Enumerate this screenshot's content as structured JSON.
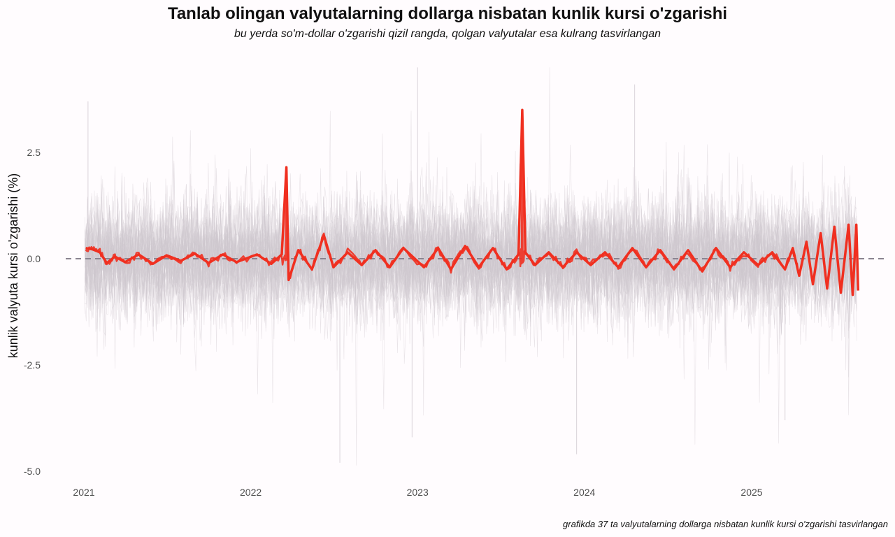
{
  "title": "Tanlab olingan valyutalarning dollarga nisbatan kunlik kursi o'zgarishi",
  "subtitle": "bu yerda so'm-dollar o'zgarishi qizil rangda,  qolgan valyutalar esa kulrang tasvirlangan",
  "caption": "grafikda  37 ta valyutalarning dollarga  nisbatan kunlik kursi o'zgarishi tasvirlangan",
  "chart_data": {
    "type": "line",
    "ylabel": "kunlik valyuta kursi o'zgarishi (%)",
    "xlabel": "",
    "xlim": [
      "2021-01-01",
      "2025-09-01"
    ],
    "ylim": [
      -5.0,
      4.5
    ],
    "x_ticks": [
      {
        "value": "2021-01-01",
        "label": "2021"
      },
      {
        "value": "2022-01-01",
        "label": "2022"
      },
      {
        "value": "2023-01-01",
        "label": "2023"
      },
      {
        "value": "2024-01-01",
        "label": "2024"
      },
      {
        "value": "2025-01-01",
        "label": "2025"
      }
    ],
    "y_ticks": [
      {
        "value": 2.5,
        "label": "2.5"
      },
      {
        "value": 0.0,
        "label": "0.0"
      },
      {
        "value": -2.5,
        "label": "-2.5"
      },
      {
        "value": -5.0,
        "label": "-5.0"
      }
    ],
    "reference_line": {
      "y": 0,
      "style": "dashed",
      "color": "#8a8490"
    },
    "grid": false,
    "legend": "none",
    "series": [
      {
        "role": "highlight",
        "color": "#f03020",
        "points": [
          [
            "2021-01-05",
            0.25
          ],
          [
            "2021-01-20",
            0.22
          ],
          [
            "2021-02-05",
            0.15
          ],
          [
            "2021-02-20",
            -0.1
          ],
          [
            "2021-03-10",
            0.05
          ],
          [
            "2021-04-01",
            -0.08
          ],
          [
            "2021-05-01",
            0.1
          ],
          [
            "2021-06-01",
            -0.12
          ],
          [
            "2021-07-01",
            0.08
          ],
          [
            "2021-08-01",
            -0.05
          ],
          [
            "2021-09-01",
            0.12
          ],
          [
            "2021-10-01",
            -0.1
          ],
          [
            "2021-11-01",
            0.1
          ],
          [
            "2021-12-01",
            -0.08
          ],
          [
            "2022-01-15",
            0.1
          ],
          [
            "2022-02-15",
            -0.12
          ],
          [
            "2022-03-10",
            0.1
          ],
          [
            "2022-03-20",
            2.15
          ],
          [
            "2022-03-25",
            -0.5
          ],
          [
            "2022-04-15",
            0.2
          ],
          [
            "2022-05-15",
            -0.25
          ],
          [
            "2022-06-10",
            0.55
          ],
          [
            "2022-07-01",
            -0.2
          ],
          [
            "2022-08-01",
            0.15
          ],
          [
            "2022-09-01",
            -0.15
          ],
          [
            "2022-10-01",
            0.2
          ],
          [
            "2022-11-01",
            -0.2
          ],
          [
            "2022-12-01",
            0.25
          ],
          [
            "2023-01-15",
            -0.2
          ],
          [
            "2023-02-15",
            0.25
          ],
          [
            "2023-03-15",
            -0.25
          ],
          [
            "2023-04-15",
            0.3
          ],
          [
            "2023-05-15",
            -0.2
          ],
          [
            "2023-06-15",
            0.25
          ],
          [
            "2023-07-15",
            -0.25
          ],
          [
            "2023-08-10",
            0.1
          ],
          [
            "2023-08-18",
            3.5
          ],
          [
            "2023-08-25",
            0.15
          ],
          [
            "2023-09-15",
            -0.15
          ],
          [
            "2023-10-15",
            0.15
          ],
          [
            "2023-11-15",
            -0.2
          ],
          [
            "2023-12-15",
            0.15
          ],
          [
            "2024-01-15",
            -0.15
          ],
          [
            "2024-02-15",
            0.15
          ],
          [
            "2024-03-15",
            -0.2
          ],
          [
            "2024-04-15",
            0.25
          ],
          [
            "2024-05-15",
            -0.2
          ],
          [
            "2024-06-15",
            0.2
          ],
          [
            "2024-07-15",
            -0.25
          ],
          [
            "2024-08-15",
            0.2
          ],
          [
            "2024-09-15",
            -0.3
          ],
          [
            "2024-10-15",
            0.25
          ],
          [
            "2024-11-15",
            -0.2
          ],
          [
            "2024-12-15",
            0.15
          ],
          [
            "2025-01-15",
            -0.15
          ],
          [
            "2025-02-15",
            0.15
          ],
          [
            "2025-03-15",
            -0.25
          ],
          [
            "2025-04-01",
            0.25
          ],
          [
            "2025-04-15",
            -0.4
          ],
          [
            "2025-05-01",
            0.4
          ],
          [
            "2025-05-15",
            -0.6
          ],
          [
            "2025-06-01",
            0.6
          ],
          [
            "2025-06-15",
            -0.7
          ],
          [
            "2025-07-01",
            0.75
          ],
          [
            "2025-07-15",
            -0.8
          ],
          [
            "2025-08-01",
            0.8
          ],
          [
            "2025-08-10",
            -0.85
          ],
          [
            "2025-08-18",
            0.8
          ],
          [
            "2025-08-22",
            -0.75
          ]
        ]
      }
    ],
    "background_series": {
      "count": 37,
      "color": "#cfc8cf",
      "description_role": "other currencies (gray)",
      "notable_extremes": [
        {
          "x": "2022-07-15",
          "y": -4.8
        },
        {
          "x": "2022-12-20",
          "y": -4.2
        },
        {
          "x": "2023-01-01",
          "y": 4.5
        },
        {
          "x": "2023-12-15",
          "y": -4.6
        },
        {
          "x": "2024-04-20",
          "y": 4.1
        },
        {
          "x": "2025-03-15",
          "y": -3.8
        },
        {
          "x": "2021-01-10",
          "y": 3.7
        }
      ]
    }
  }
}
